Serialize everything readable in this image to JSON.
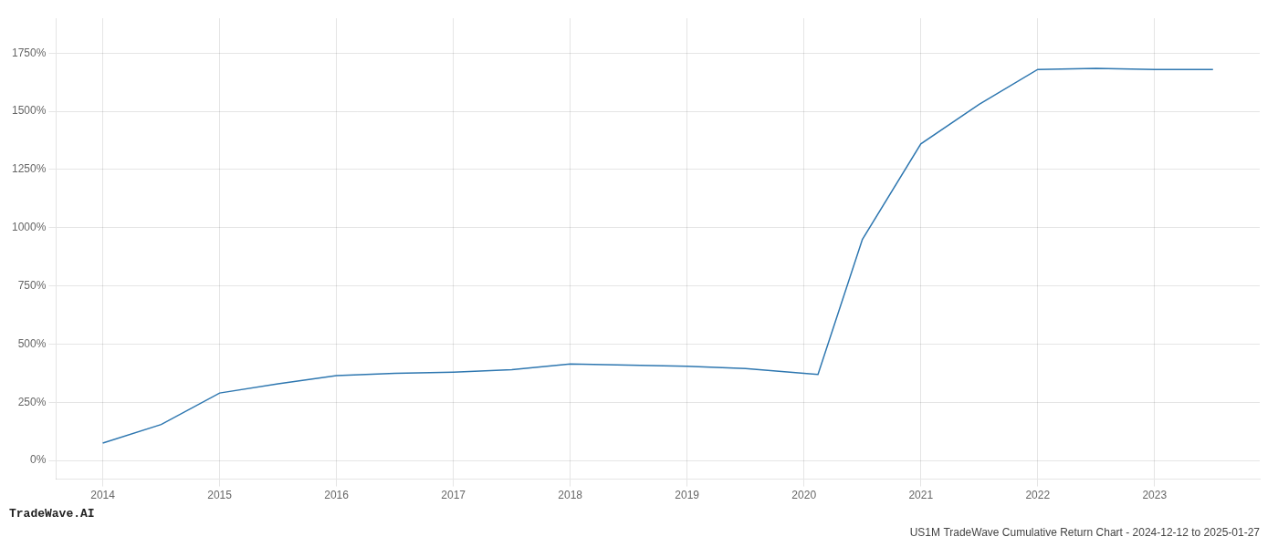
{
  "chart_data": {
    "type": "line",
    "title": "US1M TradeWave Cumulative Return Chart - 2024-12-12 to 2025-01-27",
    "annotations": [
      "TradeWave.AI"
    ],
    "x": [
      2014.0,
      2014.5,
      2015.0,
      2015.5,
      2016.0,
      2016.5,
      2017.0,
      2017.5,
      2018.0,
      2018.5,
      2019.0,
      2019.5,
      2020.0,
      2020.12,
      2020.5,
      2021.0,
      2021.5,
      2022.0,
      2022.5,
      2023.0,
      2023.5
    ],
    "values": [
      75,
      155,
      290,
      330,
      365,
      375,
      380,
      390,
      415,
      410,
      405,
      395,
      375,
      370,
      950,
      1360,
      1530,
      1680,
      1685,
      1680,
      1680
    ],
    "color": "#2e77b0",
    "xlim": [
      2013.6,
      2023.9
    ],
    "ylim": [
      -80,
      1900
    ],
    "xticks": [
      2014,
      2015,
      2016,
      2017,
      2018,
      2019,
      2020,
      2021,
      2022,
      2023
    ],
    "yticks": [
      {
        "value": 0,
        "label": "0%"
      },
      {
        "value": 250,
        "label": "250%"
      },
      {
        "value": 500,
        "label": "500%"
      },
      {
        "value": 750,
        "label": "750%"
      },
      {
        "value": 1000,
        "label": "1000%"
      },
      {
        "value": 1250,
        "label": "1250%"
      },
      {
        "value": 1500,
        "label": "1500%"
      },
      {
        "value": 1750,
        "label": "1750%"
      }
    ],
    "grid": true
  }
}
